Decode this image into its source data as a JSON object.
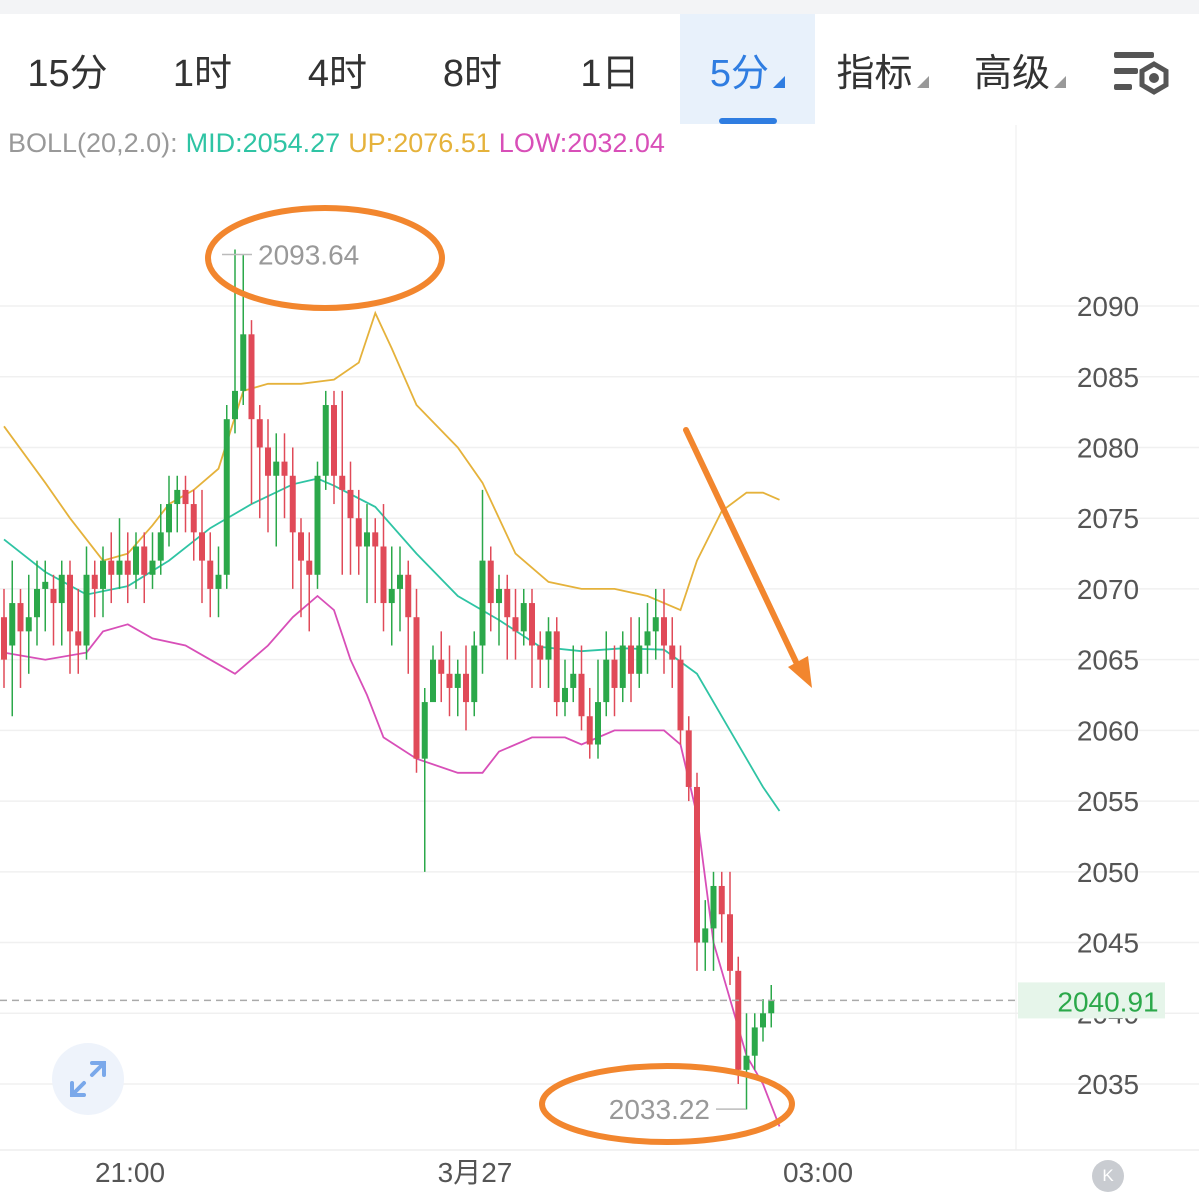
{
  "tabs": [
    {
      "label": "15分",
      "active": false,
      "dropdown": false
    },
    {
      "label": "1时",
      "active": false,
      "dropdown": false
    },
    {
      "label": "4时",
      "active": false,
      "dropdown": false
    },
    {
      "label": "8时",
      "active": false,
      "dropdown": false
    },
    {
      "label": "1日",
      "active": false,
      "dropdown": false
    },
    {
      "label": "5分",
      "active": true,
      "dropdown": true
    },
    {
      "label": "指标",
      "active": false,
      "dropdown": true
    },
    {
      "label": "高级",
      "active": false,
      "dropdown": true
    }
  ],
  "settings_icon": "chart-settings-icon",
  "indicator": {
    "name": "BOLL(20,2.0):",
    "mid": "MID:2054.27",
    "up": "UP:2076.51",
    "low": "LOW:2032.04",
    "colors": {
      "name": "#999999",
      "mid": "#2fc4a4",
      "up": "#e5b23b",
      "low": "#d84fb8"
    }
  },
  "expand_icon": "expand-icon",
  "collapse_button": "K",
  "colors": {
    "up": "#2ba84a",
    "down": "#e04a58",
    "accent": "#2f7de1",
    "annotation": "#f2862e"
  },
  "chart_data": {
    "type": "candlestick",
    "x_ticks": [
      "21:00",
      "3月27",
      "03:00"
    ],
    "y_ticks": [
      2035,
      2040,
      2045,
      2050,
      2055,
      2060,
      2065,
      2070,
      2075,
      2080,
      2085,
      2090
    ],
    "ylim": [
      2031.5,
      2095.5
    ],
    "current_price": "2040.91",
    "high_label": "2093.64",
    "low_label": "2033.22",
    "annotation": "downward-arrow",
    "candles": [
      [
        2068,
        2065,
        2070,
        2063
      ],
      [
        2066,
        2069,
        2072,
        2061
      ],
      [
        2069,
        2067,
        2070,
        2063
      ],
      [
        2067,
        2068,
        2071,
        2064
      ],
      [
        2068,
        2070,
        2072,
        2066
      ],
      [
        2070,
        2070.5,
        2072,
        2067
      ],
      [
        2070,
        2069,
        2071,
        2066
      ],
      [
        2069,
        2071,
        2072,
        2066
      ],
      [
        2071,
        2067,
        2072,
        2064
      ],
      [
        2067,
        2066,
        2070,
        2064
      ],
      [
        2066,
        2071,
        2073,
        2065
      ],
      [
        2071,
        2070,
        2072,
        2068
      ],
      [
        2070,
        2072,
        2073,
        2068
      ],
      [
        2072,
        2071,
        2074,
        2069
      ],
      [
        2071,
        2072,
        2075,
        2070
      ],
      [
        2072,
        2071,
        2074,
        2069
      ],
      [
        2071,
        2073,
        2074,
        2070
      ],
      [
        2073,
        2071,
        2074,
        2069
      ],
      [
        2071,
        2072,
        2074,
        2070
      ],
      [
        2072,
        2074,
        2076,
        2071
      ],
      [
        2074,
        2076,
        2078,
        2073
      ],
      [
        2076,
        2077,
        2078,
        2074
      ],
      [
        2077,
        2076,
        2078,
        2074
      ],
      [
        2076,
        2074,
        2077,
        2072
      ],
      [
        2074,
        2072,
        2077,
        2069
      ],
      [
        2072,
        2070,
        2074,
        2068
      ],
      [
        2070,
        2071,
        2073,
        2068
      ],
      [
        2071,
        2082,
        2083,
        2070
      ],
      [
        2082,
        2084,
        2094,
        2081
      ],
      [
        2084,
        2088,
        2093.6,
        2083
      ],
      [
        2088,
        2082,
        2089,
        2076
      ],
      [
        2082,
        2080,
        2083,
        2075
      ],
      [
        2080,
        2078,
        2082,
        2074
      ],
      [
        2078,
        2079,
        2081,
        2073
      ],
      [
        2079,
        2078,
        2081,
        2075
      ],
      [
        2078,
        2074,
        2080,
        2070
      ],
      [
        2074,
        2072,
        2075,
        2068
      ],
      [
        2072,
        2071,
        2074,
        2067
      ],
      [
        2071,
        2078,
        2079,
        2070
      ],
      [
        2078,
        2083,
        2084,
        2077
      ],
      [
        2083,
        2078,
        2084,
        2076
      ],
      [
        2078,
        2077,
        2084,
        2071
      ],
      [
        2077,
        2075,
        2079,
        2071
      ],
      [
        2075,
        2073,
        2077,
        2071
      ],
      [
        2073,
        2074,
        2076,
        2069
      ],
      [
        2074,
        2073,
        2075,
        2069
      ],
      [
        2073,
        2069,
        2076,
        2067
      ],
      [
        2069,
        2070,
        2073,
        2066
      ],
      [
        2070,
        2071,
        2073,
        2067
      ],
      [
        2071,
        2068,
        2072,
        2064
      ],
      [
        2068,
        2058,
        2070,
        2057
      ],
      [
        2058,
        2062,
        2063,
        2050
      ],
      [
        2062,
        2065,
        2066,
        2063
      ],
      [
        2065,
        2064,
        2067,
        2062
      ],
      [
        2064,
        2063,
        2066,
        2061
      ],
      [
        2063,
        2064,
        2065,
        2061
      ],
      [
        2064,
        2062,
        2066,
        2060
      ],
      [
        2062,
        2066,
        2067,
        2061
      ],
      [
        2066,
        2072,
        2077,
        2064
      ],
      [
        2072,
        2069,
        2073,
        2067
      ],
      [
        2069,
        2070,
        2071,
        2066
      ],
      [
        2070,
        2068,
        2071,
        2065
      ],
      [
        2068,
        2067,
        2070,
        2065
      ],
      [
        2067,
        2069,
        2070,
        2066
      ],
      [
        2069,
        2066,
        2070,
        2063
      ],
      [
        2066,
        2065,
        2067,
        2063
      ],
      [
        2065,
        2067,
        2068,
        2063
      ],
      [
        2067,
        2062,
        2068,
        2061
      ],
      [
        2062,
        2063,
        2065,
        2061
      ],
      [
        2063,
        2064,
        2066,
        2062
      ],
      [
        2064,
        2061,
        2066,
        2060
      ],
      [
        2061,
        2059,
        2063,
        2058
      ],
      [
        2059,
        2062,
        2065,
        2058
      ],
      [
        2062,
        2065,
        2067,
        2061
      ],
      [
        2065,
        2063,
        2066,
        2061
      ],
      [
        2063,
        2066,
        2067,
        2062
      ],
      [
        2066,
        2064,
        2068,
        2062
      ],
      [
        2064,
        2066,
        2068,
        2063
      ],
      [
        2066,
        2067,
        2069,
        2064
      ],
      [
        2067,
        2068,
        2070,
        2065
      ],
      [
        2068,
        2066,
        2070,
        2064
      ],
      [
        2066,
        2065,
        2068,
        2063
      ],
      [
        2065,
        2060,
        2066,
        2059
      ],
      [
        2060,
        2056,
        2061,
        2055
      ],
      [
        2056,
        2045,
        2057,
        2043
      ],
      [
        2045,
        2046,
        2048,
        2043
      ],
      [
        2046,
        2049,
        2050,
        2043
      ],
      [
        2049,
        2047,
        2050,
        2045
      ],
      [
        2047,
        2043,
        2050,
        2042
      ],
      [
        2043,
        2036,
        2044,
        2035
      ],
      [
        2036,
        2037,
        2040,
        2033.2
      ],
      [
        2037,
        2039,
        2040,
        2036
      ],
      [
        2039,
        2040,
        2041,
        2038
      ],
      [
        2040,
        2040.9,
        2042,
        2039
      ]
    ],
    "boll_mid": [
      [
        0,
        2073.5
      ],
      [
        5,
        2071.2
      ],
      [
        10,
        2069.6
      ],
      [
        15,
        2070.2
      ],
      [
        20,
        2072.0
      ],
      [
        25,
        2074.3
      ],
      [
        30,
        2076.0
      ],
      [
        35,
        2077.4
      ],
      [
        38,
        2077.8
      ],
      [
        40,
        2077.3
      ],
      [
        45,
        2075.8
      ],
      [
        50,
        2072.5
      ],
      [
        55,
        2069.5
      ],
      [
        60,
        2067.8
      ],
      [
        65,
        2065.9
      ],
      [
        70,
        2065.6
      ],
      [
        75,
        2065.8
      ],
      [
        80,
        2065.7
      ],
      [
        84,
        2064.0
      ],
      [
        88,
        2060.0
      ],
      [
        92,
        2056.0
      ],
      [
        94,
        2054.3
      ]
    ],
    "boll_up": [
      [
        0,
        2081.5
      ],
      [
        5,
        2077.5
      ],
      [
        8,
        2075.0
      ],
      [
        12,
        2072.0
      ],
      [
        15,
        2072.5
      ],
      [
        18,
        2074.5
      ],
      [
        20,
        2076.0
      ],
      [
        23,
        2077.0
      ],
      [
        26,
        2078.5
      ],
      [
        29,
        2084.0
      ],
      [
        32,
        2084.5
      ],
      [
        36,
        2084.5
      ],
      [
        40,
        2084.8
      ],
      [
        43,
        2086.0
      ],
      [
        45,
        2089.5
      ],
      [
        47,
        2087.0
      ],
      [
        50,
        2083.0
      ],
      [
        55,
        2080.0
      ],
      [
        58,
        2077.5
      ],
      [
        62,
        2072.5
      ],
      [
        66,
        2070.5
      ],
      [
        70,
        2070.0
      ],
      [
        74,
        2070.0
      ],
      [
        78,
        2069.5
      ],
      [
        82,
        2068.5
      ],
      [
        84,
        2072.0
      ],
      [
        87,
        2075.5
      ],
      [
        90,
        2076.8
      ],
      [
        92,
        2076.8
      ],
      [
        94,
        2076.3
      ]
    ],
    "boll_low": [
      [
        0,
        2065.5
      ],
      [
        5,
        2065.0
      ],
      [
        10,
        2065.5
      ],
      [
        12,
        2067.0
      ],
      [
        15,
        2067.5
      ],
      [
        18,
        2066.5
      ],
      [
        22,
        2066.0
      ],
      [
        25,
        2065.0
      ],
      [
        28,
        2064.0
      ],
      [
        32,
        2066.0
      ],
      [
        35,
        2068.0
      ],
      [
        38,
        2069.5
      ],
      [
        40,
        2068.5
      ],
      [
        42,
        2065.0
      ],
      [
        44,
        2062.5
      ],
      [
        46,
        2059.5
      ],
      [
        50,
        2058.0
      ],
      [
        55,
        2057.0
      ],
      [
        58,
        2057.0
      ],
      [
        60,
        2058.5
      ],
      [
        64,
        2059.5
      ],
      [
        68,
        2059.5
      ],
      [
        70,
        2059.0
      ],
      [
        74,
        2060.0
      ],
      [
        78,
        2060.0
      ],
      [
        80,
        2060.0
      ],
      [
        82,
        2059.0
      ],
      [
        84,
        2054.0
      ],
      [
        86,
        2045.0
      ],
      [
        88,
        2041.0
      ],
      [
        90,
        2037.0
      ],
      [
        92,
        2035.0
      ],
      [
        94,
        2032.0
      ]
    ]
  }
}
